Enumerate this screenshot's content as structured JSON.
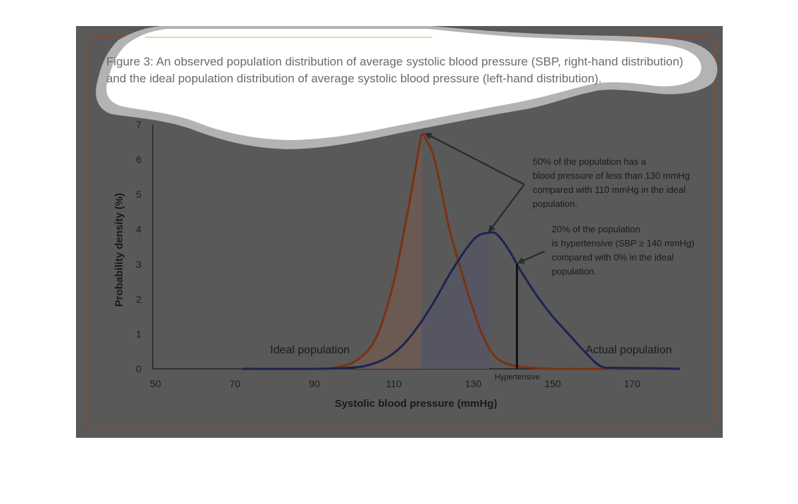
{
  "caption": {
    "line1": "Figure 3: An observed population distribution of average systolic blood pressure (SBP, right-hand distribution)",
    "line2": "and the ideal population distribution of average systolic blood pressure (left-hand distribution)."
  },
  "chart_data": {
    "type": "line",
    "xlabel": "Systolic blood pressure (mmHg)",
    "ylabel": "Probability density (%)",
    "xlim": [
      50,
      182
    ],
    "ylim": [
      0,
      7
    ],
    "x_ticks": [
      50,
      70,
      90,
      110,
      130,
      150,
      170
    ],
    "y_ticks": [
      0,
      1,
      2,
      3,
      4,
      5,
      6,
      7
    ],
    "grid": false,
    "series": [
      {
        "name": "Ideal population",
        "color": "#7a3210",
        "fill_color": "#6a5a52",
        "fill_to_x": 117,
        "x": [
          72,
          90,
          95,
          100,
          104,
          107,
          110,
          112,
          114,
          116,
          117,
          118,
          120,
          122,
          124,
          127,
          130,
          133,
          136,
          140,
          145,
          150,
          160,
          175,
          182
        ],
        "y": [
          0,
          0,
          0.03,
          0.2,
          0.6,
          1.3,
          2.5,
          3.6,
          4.8,
          6.1,
          6.7,
          6.6,
          6.1,
          5.1,
          4.0,
          2.8,
          1.7,
          0.8,
          0.3,
          0.1,
          0.03,
          0,
          0,
          0,
          0
        ]
      },
      {
        "name": "Actual population",
        "color": "#1c2450",
        "fill_color": "#565663",
        "fill_from_x": 117,
        "fill_to_x": 134,
        "x": [
          72,
          90,
          100,
          104,
          108,
          112,
          116,
          120,
          124,
          128,
          131,
          134,
          136,
          139,
          142,
          146,
          150,
          154,
          158,
          162,
          166,
          175,
          182
        ],
        "y": [
          0,
          0,
          0.04,
          0.12,
          0.3,
          0.65,
          1.2,
          1.9,
          2.7,
          3.4,
          3.8,
          3.9,
          3.85,
          3.4,
          2.8,
          2.1,
          1.5,
          1.0,
          0.5,
          0.08,
          0.03,
          0.02,
          0
        ],
        "hypertensive_marker_x": 141,
        "hypertensive_marker_y": 3.0
      }
    ],
    "annotations": {
      "median": [
        "50% of the population has a",
        "blood pressure of less than 130 mmHg",
        "compared with 110 mmHg in the ideal",
        "population."
      ],
      "hypertensive": [
        "20% of the population",
        "is hypertensive (SBP  ≥ 140 mmHg)",
        "compared with 0% in the ideal",
        "population."
      ],
      "ideal_label": "Ideal population",
      "actual_label": "Actual population",
      "hypertensive_label": "Hypertensive"
    }
  },
  "colors": {
    "panel_bg": "#595959",
    "frame": "#8a4a2a",
    "axis": "#1a1a1a",
    "callout_arrow": "#2a2a2a",
    "caption_band": "#d9a24a"
  }
}
